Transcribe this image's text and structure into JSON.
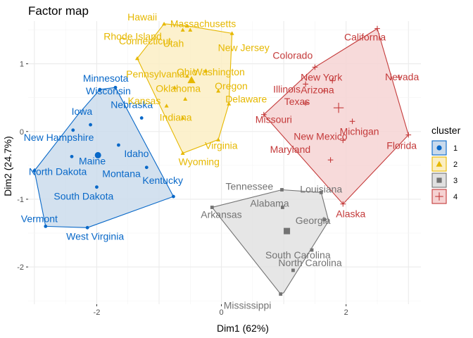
{
  "chart_data": {
    "type": "scatter",
    "title": "Factor map",
    "xlabel": "Dim1 (62%)",
    "ylabel": "Dim2 (24.7%)",
    "xlim": [
      -3.1,
      3.2
    ],
    "ylim": [
      -2.55,
      1.63
    ],
    "xticks": [
      -2,
      0,
      2
    ],
    "yticks": [
      -2,
      -1,
      0,
      1
    ],
    "grid": true,
    "legend_title": "cluster",
    "legend_position": "right",
    "clusters": [
      {
        "name": "1",
        "color": "#0868c8",
        "fill": "#c9daec",
        "shape": "circle",
        "centroid": [
          -1.98,
          -0.35
        ],
        "hull": [
          [
            -1.95,
            0.62
          ],
          [
            -1.7,
            0.65
          ],
          [
            -0.77,
            -0.96
          ],
          [
            -2.15,
            -1.42
          ],
          [
            -2.82,
            -1.4
          ],
          [
            -3.0,
            -0.58
          ],
          [
            -2.3,
            0.25
          ]
        ],
        "points": [
          {
            "label": "Minnesota",
            "x": -1.95,
            "y": 0.62
          },
          {
            "label": "Wisconsin",
            "x": -1.7,
            "y": 0.65
          },
          {
            "label": "Iowa",
            "x": -2.1,
            "y": 0.1
          },
          {
            "label": "New Hampshire",
            "x": -2.38,
            "y": 0.02
          },
          {
            "label": "Nebraska",
            "x": -1.28,
            "y": 0.2
          },
          {
            "label": "Maine",
            "x": -2.4,
            "y": -0.37
          },
          {
            "label": "Idaho",
            "x": -1.65,
            "y": -0.2
          },
          {
            "label": "North Dakota",
            "x": -3.0,
            "y": -0.58
          },
          {
            "label": "Montana",
            "x": -1.2,
            "y": -0.53
          },
          {
            "label": "South Dakota",
            "x": -2.0,
            "y": -0.82
          },
          {
            "label": "Kentucky",
            "x": -0.77,
            "y": -0.96
          },
          {
            "label": "Vermont",
            "x": -2.82,
            "y": -1.4
          },
          {
            "label": "West Virginia",
            "x": -2.15,
            "y": -1.42
          }
        ]
      },
      {
        "name": "2",
        "color": "#e6b800",
        "fill": "#fbeec2",
        "shape": "triangle",
        "centroid": [
          -0.48,
          0.76
        ],
        "hull": [
          [
            -0.92,
            1.59
          ],
          [
            -0.55,
            1.56
          ],
          [
            0.17,
            1.45
          ],
          [
            0.12,
            0.41
          ],
          [
            -0.05,
            -0.12
          ],
          [
            -0.62,
            -0.32
          ],
          [
            -1.35,
            1.08
          ]
        ],
        "points": [
          {
            "label": "Hawaii",
            "x": -0.92,
            "y": 1.59
          },
          {
            "label": "Massachusetts",
            "x": -0.55,
            "y": 1.56
          },
          {
            "label": "Rhode Island",
            "x": -0.5,
            "y": 1.5
          },
          {
            "label": "Utah",
            "x": -0.62,
            "y": 1.5
          },
          {
            "label": "New Jersey",
            "x": 0.17,
            "y": 1.45
          },
          {
            "label": "Connecticut",
            "x": -1.35,
            "y": 1.08
          },
          {
            "label": "Washington",
            "x": -0.25,
            "y": 0.9
          },
          {
            "label": "Ohio",
            "x": -0.55,
            "y": 0.82
          },
          {
            "label": "Pennsylvania",
            "x": -0.75,
            "y": 0.65
          },
          {
            "label": "Oregon",
            "x": -0.05,
            "y": 0.6
          },
          {
            "label": "Oklahoma",
            "x": -0.58,
            "y": 0.48
          },
          {
            "label": "Kansas",
            "x": -0.88,
            "y": 0.38
          },
          {
            "label": "Delaware",
            "x": 0.12,
            "y": 0.41
          },
          {
            "label": "Indiana",
            "x": -0.62,
            "y": 0.2
          },
          {
            "label": "Virginia",
            "x": -0.05,
            "y": -0.12
          },
          {
            "label": "Wyoming",
            "x": -0.62,
            "y": -0.32
          }
        ]
      },
      {
        "name": "3",
        "color": "#737373",
        "fill": "#e0e0e0",
        "shape": "square",
        "centroid": [
          1.05,
          -1.47
        ],
        "hull": [
          [
            0.97,
            -0.86
          ],
          [
            1.6,
            -0.9
          ],
          [
            1.72,
            -1.32
          ],
          [
            1.0,
            -2.38
          ],
          [
            0.95,
            -2.4
          ],
          [
            -0.15,
            -1.12
          ]
        ],
        "points": [
          {
            "label": "Tennessee",
            "x": 0.97,
            "y": -0.86
          },
          {
            "label": "Louisiana",
            "x": 1.6,
            "y": -0.9
          },
          {
            "label": "Alabama",
            "x": 0.98,
            "y": -1.12
          },
          {
            "label": "Arkansas",
            "x": -0.15,
            "y": -1.12
          },
          {
            "label": "Georgia",
            "x": 1.65,
            "y": -1.3
          },
          {
            "label": "South Carolina",
            "x": 1.45,
            "y": -1.75
          },
          {
            "label": "North Carolina",
            "x": 1.15,
            "y": -2.05
          },
          {
            "label": "Mississippi",
            "x": 0.95,
            "y": -2.4
          }
        ]
      },
      {
        "name": "4",
        "color": "#c43a3a",
        "fill": "#f5d2d2",
        "shape": "cross",
        "centroid": [
          1.88,
          0.35
        ],
        "hull": [
          [
            2.5,
            1.52
          ],
          [
            3.0,
            -0.05
          ],
          [
            1.95,
            -1.07
          ],
          [
            0.68,
            0.25
          ],
          [
            1.5,
            0.95
          ]
        ],
        "points": [
          {
            "label": "California",
            "x": 2.5,
            "y": 1.52
          },
          {
            "label": "Nevada",
            "x": 2.85,
            "y": 0.8
          },
          {
            "label": "Colorado",
            "x": 1.5,
            "y": 0.95
          },
          {
            "label": "New York",
            "x": 1.35,
            "y": 0.7
          },
          {
            "label": "Arizona",
            "x": 1.78,
            "y": 0.75
          },
          {
            "label": "Illinois",
            "x": 1.35,
            "y": 0.42
          },
          {
            "label": "Texas",
            "x": 1.65,
            "y": 0.6
          },
          {
            "label": "Missouri",
            "x": 0.68,
            "y": 0.25
          },
          {
            "label": "Michigan",
            "x": 2.1,
            "y": 0.15
          },
          {
            "label": "Florida",
            "x": 3.0,
            "y": -0.05
          },
          {
            "label": "New Mexico",
            "x": 1.95,
            "y": -0.13
          },
          {
            "label": "Maryland",
            "x": 1.75,
            "y": -0.42
          },
          {
            "label": "Alaska",
            "x": 1.95,
            "y": -1.07
          }
        ]
      }
    ]
  }
}
